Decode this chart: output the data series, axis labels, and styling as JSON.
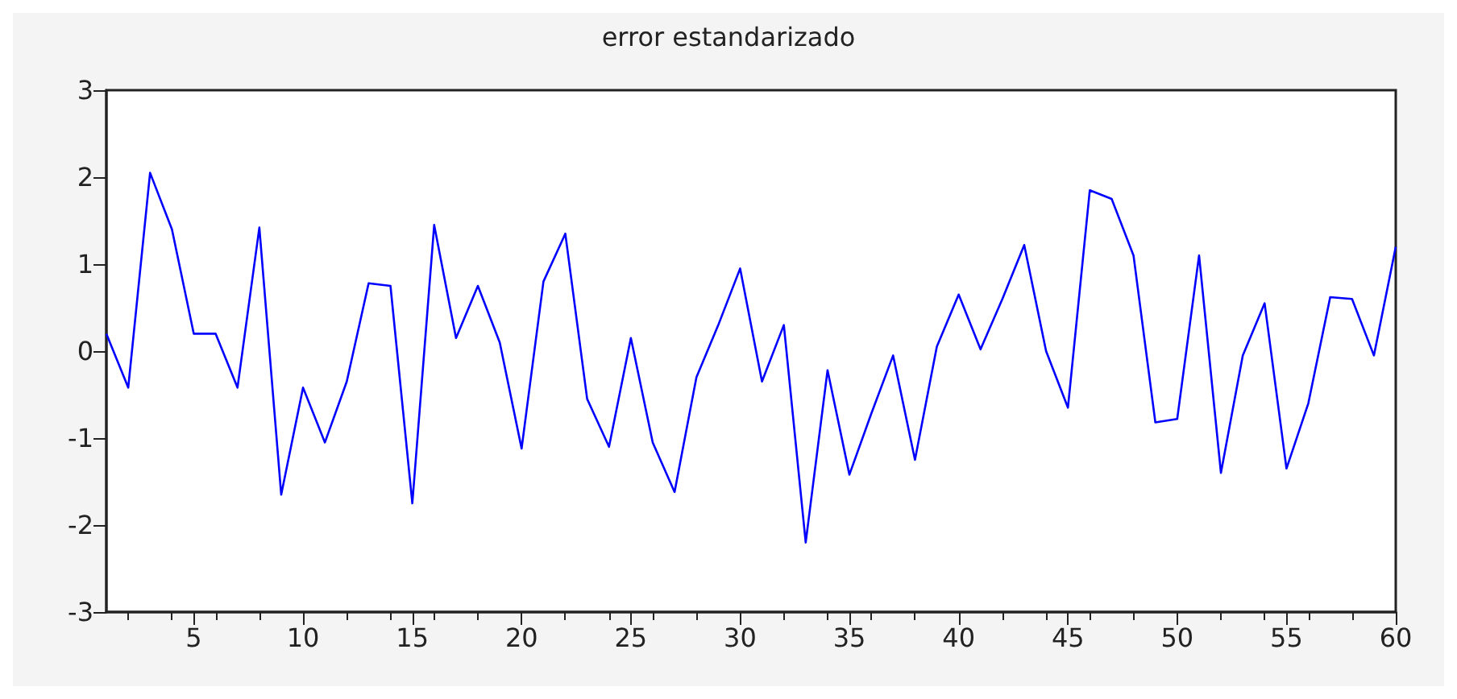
{
  "chart_data": {
    "type": "line",
    "title": "error estandarizado",
    "x": [
      1,
      2,
      3,
      4,
      5,
      6,
      7,
      8,
      9,
      10,
      11,
      12,
      13,
      14,
      15,
      16,
      17,
      18,
      19,
      20,
      21,
      22,
      23,
      24,
      25,
      26,
      27,
      28,
      29,
      30,
      31,
      32,
      33,
      34,
      35,
      36,
      37,
      38,
      39,
      40,
      41,
      42,
      43,
      44,
      45,
      46,
      47,
      48,
      49,
      50,
      51,
      52,
      53,
      54,
      55,
      56,
      57,
      58,
      59,
      60
    ],
    "series": [
      {
        "color": "#0000ff",
        "values": [
          0.2,
          -0.42,
          2.05,
          1.4,
          0.2,
          0.2,
          -0.42,
          1.42,
          -1.65,
          -0.42,
          -1.05,
          -0.35,
          0.78,
          0.75,
          -1.75,
          1.45,
          0.15,
          0.75,
          0.1,
          -1.12,
          0.8,
          1.35,
          -0.55,
          -1.1,
          0.15,
          -1.05,
          -1.62,
          -0.3,
          0.3,
          0.95,
          -0.35,
          0.3,
          -2.2,
          -0.22,
          -1.42,
          -0.72,
          -0.05,
          -1.25,
          0.05,
          0.65,
          0.02,
          0.6,
          1.22,
          0.0,
          -0.65,
          1.85,
          1.75,
          1.1,
          -0.82,
          -0.78,
          1.1,
          -1.4,
          -0.05,
          0.55,
          -1.35,
          -0.6,
          0.62,
          0.6,
          -0.05,
          1.2
        ]
      }
    ],
    "xlim": [
      1,
      60
    ],
    "xticks": [
      5,
      10,
      15,
      20,
      25,
      30,
      35,
      40,
      45,
      50,
      55,
      60
    ],
    "ylim": [
      -3,
      3
    ],
    "yticks": [
      -3,
      -2,
      -1,
      0,
      1,
      2,
      3
    ],
    "grid": false,
    "marker": "none",
    "line_style": "solid"
  }
}
